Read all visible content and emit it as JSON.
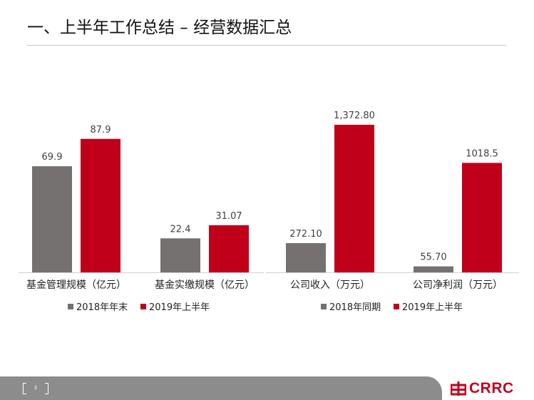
{
  "slide": {
    "title": "一、上半年工作总结 – 经营数据汇总",
    "page_number": "3",
    "brand": "CRRC"
  },
  "colors": {
    "grey_series": "#757171",
    "red_series": "#c0001b",
    "footer_bar": "#8c8c8c",
    "brand_red": "#c0021f"
  },
  "chart_data": [
    {
      "type": "bar",
      "categories": [
        "基金管理规模（亿元）",
        "基金实缴规模（亿元）"
      ],
      "series": [
        {
          "name": "2018年年末",
          "values": [
            69.9,
            22.4
          ],
          "labels": [
            "69.9",
            "22.4"
          ],
          "color": "#757171"
        },
        {
          "name": "2019年上半年",
          "values": [
            87.9,
            31.07
          ],
          "labels": [
            "87.9",
            "31.07"
          ],
          "color": "#c0001b"
        }
      ],
      "ylim": [
        0,
        100
      ],
      "legend": "bottom",
      "grid": false
    },
    {
      "type": "bar",
      "categories": [
        "公司收入（万元）",
        "公司净利润（万元）"
      ],
      "series": [
        {
          "name": "2018年同期",
          "values": [
            272.1,
            55.7
          ],
          "labels": [
            "272.10",
            "55.70"
          ],
          "color": "#757171"
        },
        {
          "name": "2019年上半年",
          "values": [
            1372.8,
            1018.5
          ],
          "labels": [
            "1,372.80",
            "1018.5"
          ],
          "color": "#c0001b"
        }
      ],
      "ylim": [
        0,
        1560
      ],
      "legend": "bottom",
      "grid": false
    }
  ]
}
